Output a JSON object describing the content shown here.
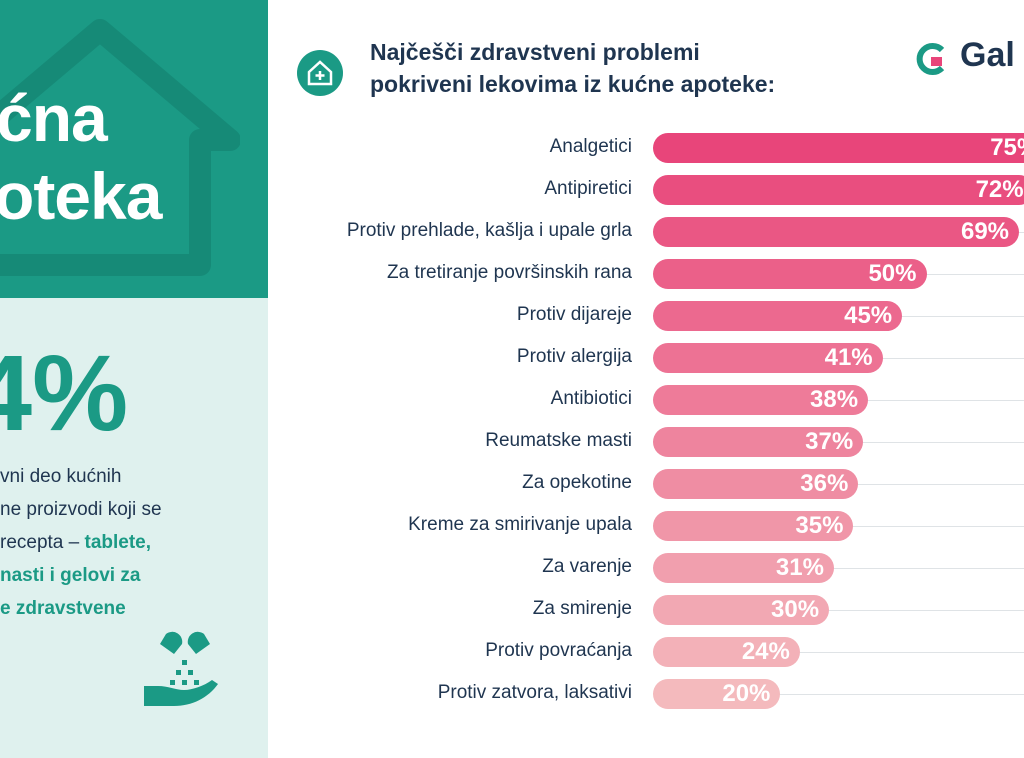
{
  "left_panel": {
    "title_line1": "ćna",
    "title_line2": "oteka",
    "big_percent": "4%",
    "paragraph": {
      "line1": "vni deo kućnih",
      "line2": "ne proizvodi koji se",
      "line3_plain": "recepta – ",
      "line3_bold": "tablete,",
      "line4_bold": "nasti i gelovi za",
      "line5_bold": "e zdravstvene"
    },
    "icons": [
      "house-outline-icon",
      "pill-hand-icon"
    ]
  },
  "header": {
    "title_line1": "Najčešči zdravstveni problemi",
    "title_line2": "pokriveni lekovima iz kućne apoteke:",
    "icon": "house-plus-icon",
    "logo_text": "Gal"
  },
  "colors": {
    "teal": "#1b9a85",
    "navy": "#1f3550",
    "bar_dark": "#e8457a",
    "bar_light": "#f4babd",
    "mint": "#dff1ee"
  },
  "chart_data": {
    "type": "bar",
    "orientation": "horizontal",
    "categories": [
      "Analgetici",
      "Antipiretici",
      "Protiv prehlade, kašlja i upale grla",
      "Za tretiranje površinskih rana",
      "Protiv dijareje",
      "Protiv alergija",
      "Antibiotici",
      "Reumatske masti",
      "Za opekotine",
      "Kreme za smirivanje upala",
      "Za varenje",
      "Za smirenje",
      "Protiv povraćanja",
      "Protiv zatvora, laksativi"
    ],
    "values": [
      75,
      72,
      69,
      50,
      45,
      41,
      38,
      37,
      36,
      35,
      31,
      30,
      24,
      20
    ],
    "value_labels": [
      "75%",
      "72%",
      "69%",
      "50%",
      "45%",
      "41%",
      "38%",
      "37%",
      "36%",
      "35%",
      "31%",
      "30%",
      "24%",
      "20%"
    ],
    "unit": "%",
    "title": "Najčešči zdravstveni problemi pokriveni lekovima iz kućne apoteke:",
    "grid": true
  }
}
